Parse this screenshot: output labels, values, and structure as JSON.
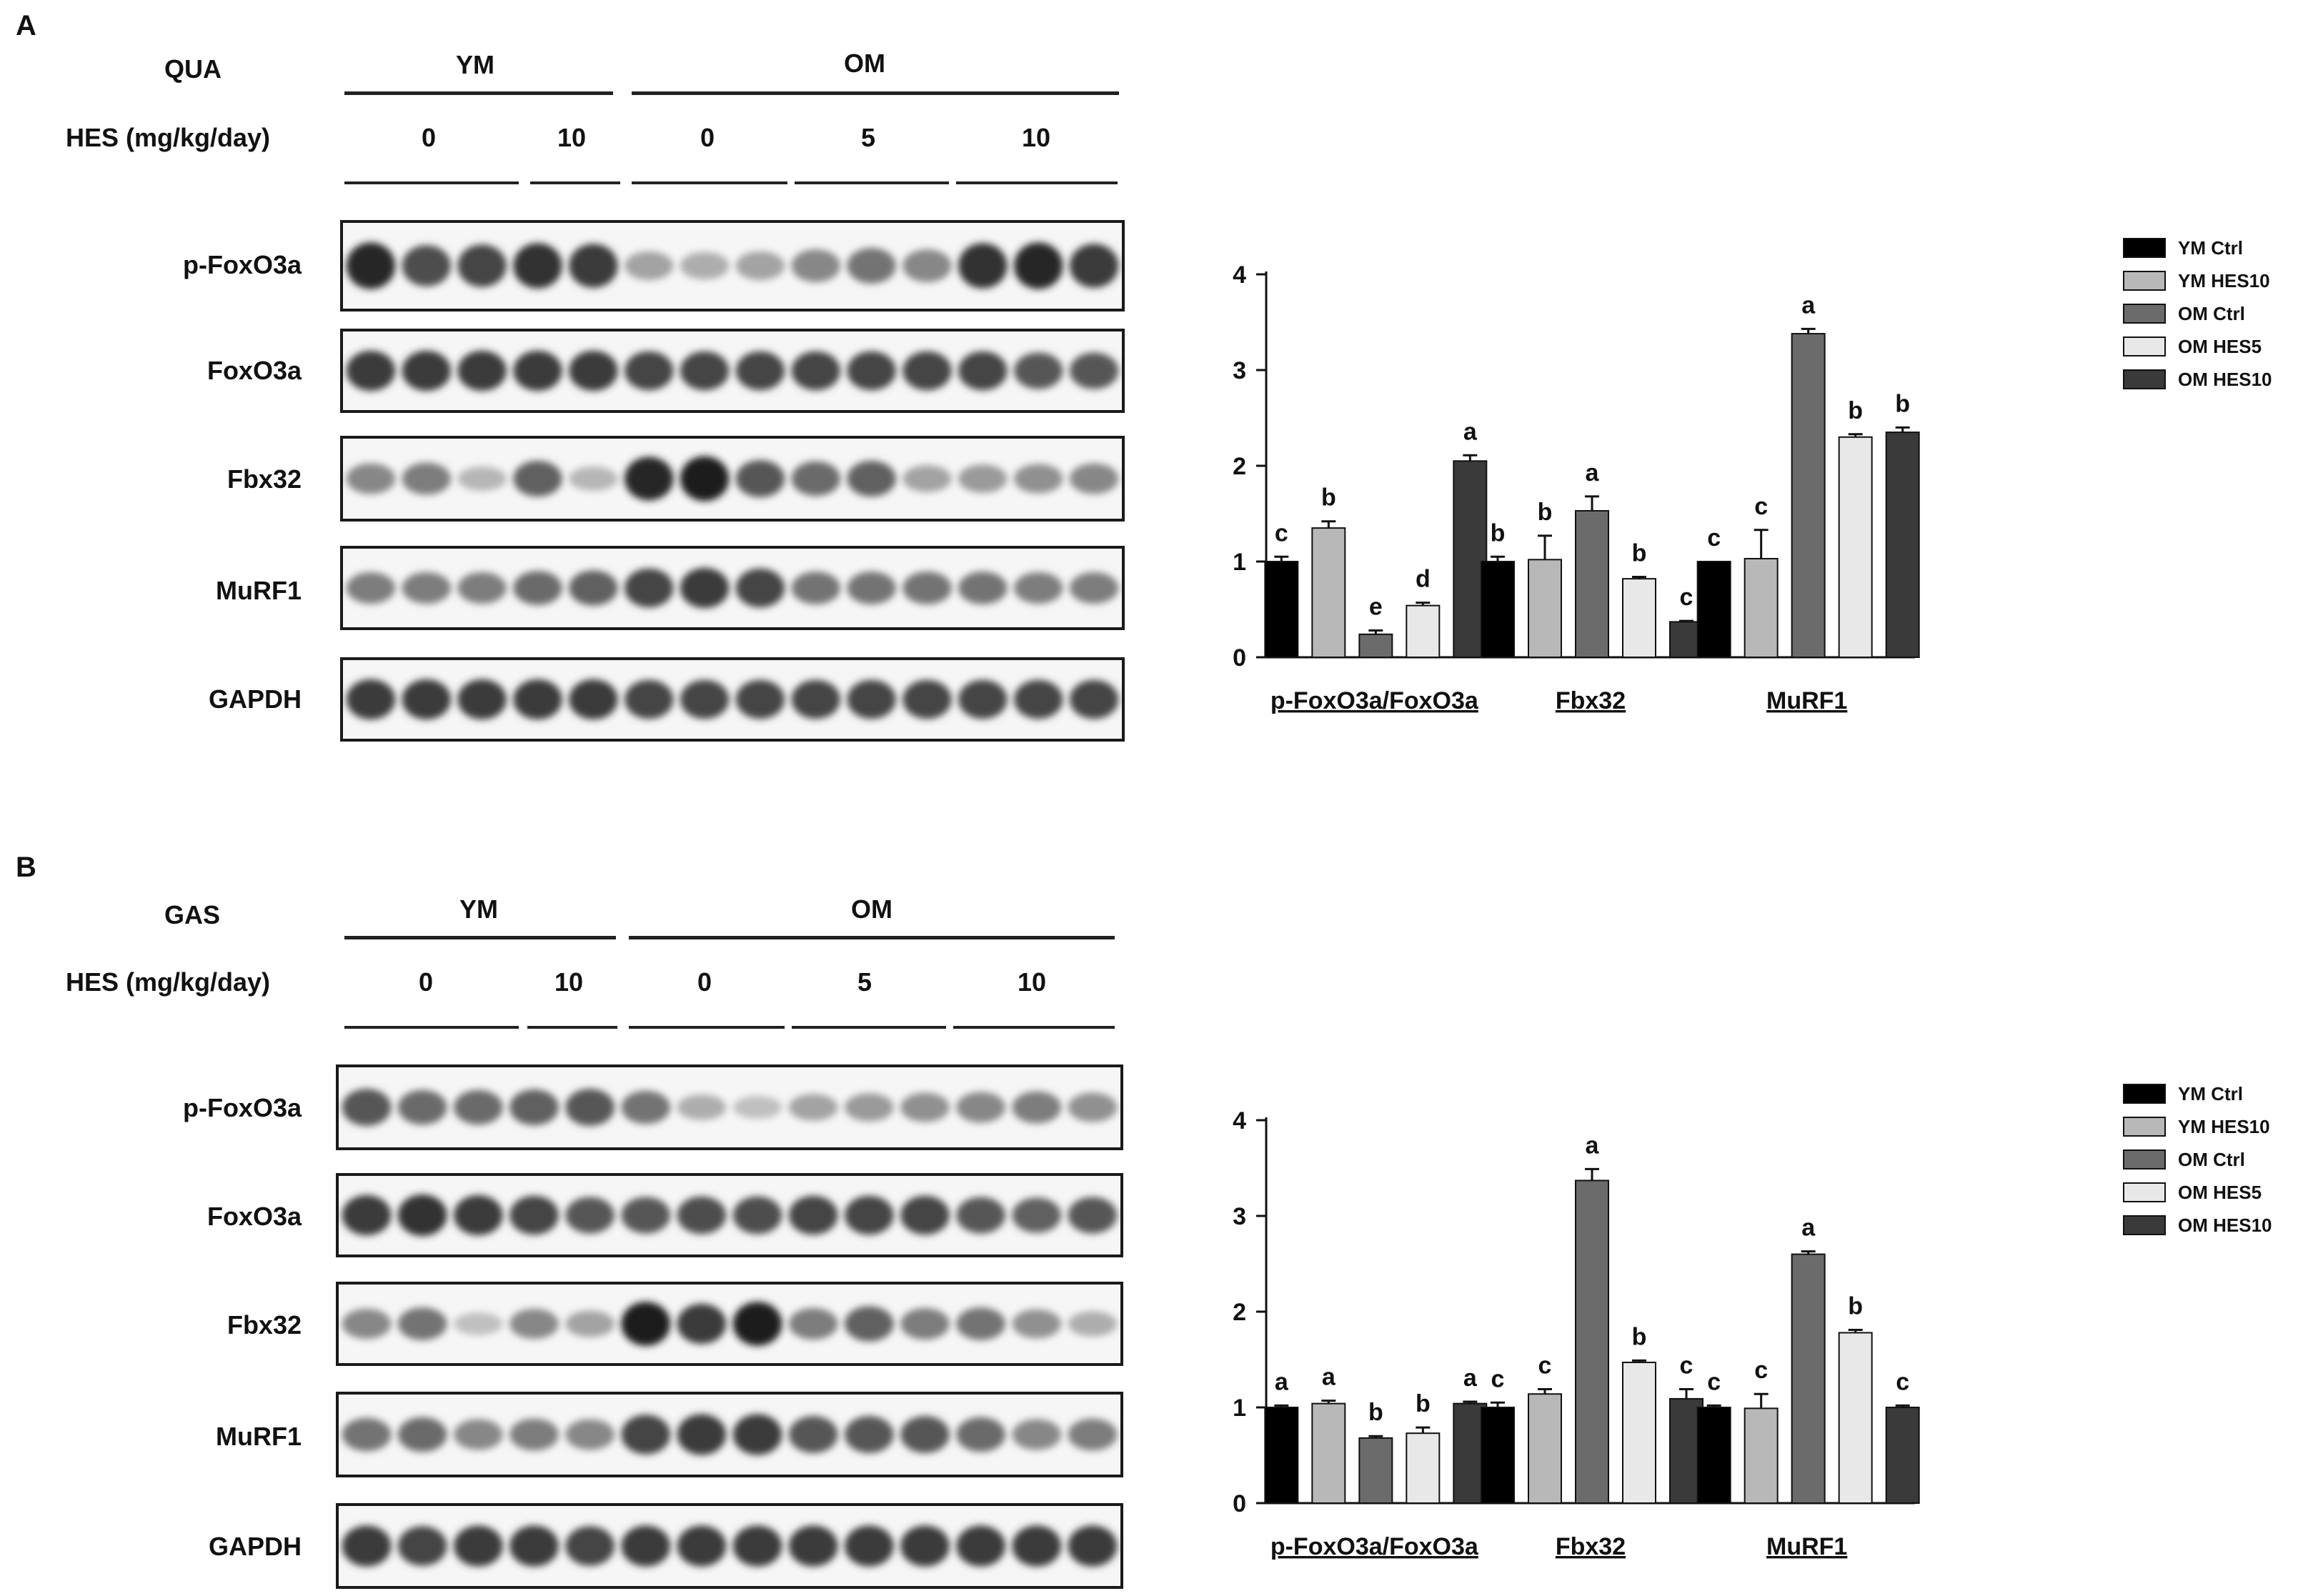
{
  "panels": [
    {
      "letter": "A",
      "tissue": "QUA",
      "age_groups": [
        "YM",
        "OM"
      ],
      "dose_label": "HES (mg/kg/day)",
      "doses": [
        "0",
        "10",
        "0",
        "5",
        "10"
      ],
      "blots": [
        {
          "name": "p-FoxO3a",
          "intensity": [
            0.95,
            0.75,
            0.8,
            0.9,
            0.85,
            0.3,
            0.25,
            0.3,
            0.45,
            0.55,
            0.45,
            0.9,
            0.95,
            0.85
          ]
        },
        {
          "name": "FoxO3a",
          "intensity": [
            0.85,
            0.85,
            0.85,
            0.85,
            0.85,
            0.8,
            0.8,
            0.8,
            0.8,
            0.8,
            0.8,
            0.8,
            0.7,
            0.7
          ]
        },
        {
          "name": "Fbx32",
          "intensity": [
            0.45,
            0.5,
            0.2,
            0.65,
            0.2,
            0.95,
            1.0,
            0.7,
            0.6,
            0.65,
            0.3,
            0.35,
            0.4,
            0.45
          ]
        },
        {
          "name": "MuRF1",
          "intensity": [
            0.5,
            0.5,
            0.5,
            0.6,
            0.65,
            0.8,
            0.85,
            0.8,
            0.55,
            0.55,
            0.55,
            0.55,
            0.5,
            0.5
          ]
        },
        {
          "name": "GAPDH",
          "intensity": [
            0.85,
            0.85,
            0.85,
            0.85,
            0.85,
            0.8,
            0.8,
            0.8,
            0.8,
            0.8,
            0.8,
            0.8,
            0.8,
            0.8
          ]
        }
      ],
      "chart_data": {
        "type": "bar",
        "categories": [
          "p-FoxO3a/FoxO3a",
          "Fbx32",
          "MuRF1"
        ],
        "ylim": [
          0,
          4
        ],
        "yticks": [
          "0",
          "1",
          "2",
          "3",
          "4"
        ],
        "legend_position": "top-right",
        "series": [
          {
            "name": "YM Ctrl",
            "color": "#000000",
            "values": [
              1.0,
              1.0,
              1.0
            ],
            "errors": [
              0.05,
              0.05,
              0.0
            ],
            "letters": [
              "c",
              "b",
              "c"
            ]
          },
          {
            "name": "YM HES10",
            "color": "#b8b8b8",
            "values": [
              1.35,
              1.02,
              1.03
            ],
            "errors": [
              0.07,
              0.25,
              0.3
            ],
            "letters": [
              "b",
              "b",
              "c"
            ]
          },
          {
            "name": "OM Ctrl",
            "color": "#6b6b6b",
            "values": [
              0.24,
              1.53,
              3.38
            ],
            "errors": [
              0.04,
              0.15,
              0.05
            ],
            "letters": [
              "e",
              "a",
              "a"
            ]
          },
          {
            "name": "OM HES5",
            "color": "#e8e8e8",
            "values": [
              0.54,
              0.82,
              2.3
            ],
            "errors": [
              0.03,
              0.02,
              0.03
            ],
            "letters": [
              "d",
              "b",
              "b"
            ]
          },
          {
            "name": "OM HES10",
            "color": "#3a3a3a",
            "values": [
              2.05,
              0.37,
              2.35
            ],
            "errors": [
              0.06,
              0.01,
              0.05
            ],
            "letters": [
              "a",
              "c",
              "b"
            ]
          }
        ]
      }
    },
    {
      "letter": "B",
      "tissue": "GAS",
      "age_groups": [
        "YM",
        "OM"
      ],
      "dose_label": "HES (mg/kg/day)",
      "doses": [
        "0",
        "10",
        "0",
        "5",
        "10"
      ],
      "blots": [
        {
          "name": "p-FoxO3a",
          "intensity": [
            0.7,
            0.6,
            0.6,
            0.65,
            0.7,
            0.55,
            0.25,
            0.15,
            0.3,
            0.35,
            0.4,
            0.45,
            0.5,
            0.4
          ]
        },
        {
          "name": "FoxO3a",
          "intensity": [
            0.85,
            0.9,
            0.85,
            0.8,
            0.7,
            0.7,
            0.75,
            0.75,
            0.8,
            0.8,
            0.8,
            0.7,
            0.65,
            0.7
          ]
        },
        {
          "name": "Fbx32",
          "intensity": [
            0.45,
            0.55,
            0.15,
            0.45,
            0.3,
            1.0,
            0.85,
            1.0,
            0.5,
            0.65,
            0.5,
            0.55,
            0.4,
            0.25
          ]
        },
        {
          "name": "MuRF1",
          "intensity": [
            0.55,
            0.6,
            0.45,
            0.5,
            0.45,
            0.8,
            0.85,
            0.85,
            0.7,
            0.7,
            0.7,
            0.6,
            0.45,
            0.5
          ]
        },
        {
          "name": "GAPDH",
          "intensity": [
            0.85,
            0.8,
            0.85,
            0.85,
            0.8,
            0.85,
            0.85,
            0.85,
            0.85,
            0.85,
            0.85,
            0.85,
            0.85,
            0.85
          ]
        }
      ],
      "chart_data": {
        "type": "bar",
        "categories": [
          "p-FoxO3a/FoxO3a",
          "Fbx32",
          "MuRF1"
        ],
        "ylim": [
          0,
          4
        ],
        "yticks": [
          "0",
          "1",
          "2",
          "3",
          "4"
        ],
        "legend_position": "top-right",
        "series": [
          {
            "name": "YM Ctrl",
            "color": "#000000",
            "values": [
              1.0,
              1.0,
              1.0
            ],
            "errors": [
              0.02,
              0.05,
              0.02
            ],
            "letters": [
              "a",
              "c",
              "c"
            ]
          },
          {
            "name": "YM HES10",
            "color": "#b8b8b8",
            "values": [
              1.04,
              1.14,
              0.99
            ],
            "errors": [
              0.03,
              0.05,
              0.15
            ],
            "letters": [
              "a",
              "c",
              "c"
            ]
          },
          {
            "name": "OM Ctrl",
            "color": "#6b6b6b",
            "values": [
              0.68,
              3.37,
              2.6
            ],
            "errors": [
              0.02,
              0.12,
              0.03
            ],
            "letters": [
              "b",
              "a",
              "a"
            ]
          },
          {
            "name": "OM HES5",
            "color": "#e8e8e8",
            "values": [
              0.73,
              1.47,
              1.78
            ],
            "errors": [
              0.06,
              0.02,
              0.03
            ],
            "letters": [
              "b",
              "b",
              "b"
            ]
          },
          {
            "name": "OM HES10",
            "color": "#3a3a3a",
            "values": [
              1.04,
              1.09,
              1.0
            ],
            "errors": [
              0.02,
              0.1,
              0.02
            ],
            "letters": [
              "a",
              "c",
              "c"
            ]
          }
        ]
      }
    }
  ]
}
